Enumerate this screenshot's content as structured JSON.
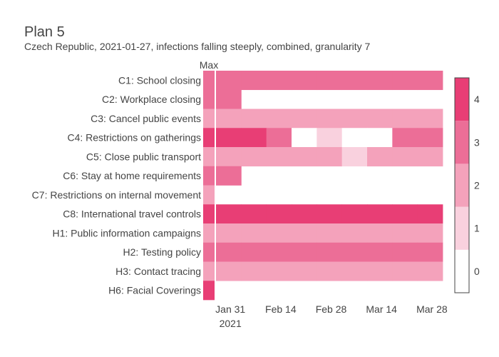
{
  "chart_data": {
    "type": "heatmap",
    "title": "Plan 5",
    "subtitle": "Czech Republic, 2021-01-27, infections falling steeply, combined, granularity 7",
    "max_column_label": "Max",
    "rows": [
      "C1: School closing",
      "C2: Workplace closing",
      "C3: Cancel public events",
      "C4: Restrictions on gatherings",
      "C5: Close public transport",
      "C6: Stay at home requirements",
      "C7: Restrictions on internal movement",
      "C8: International travel controls",
      "H1: Public information campaigns",
      "H2: Testing policy",
      "H3: Contact tracing",
      "H6: Facial Coverings"
    ],
    "max_values": [
      3,
      3,
      2,
      4,
      2,
      3,
      2,
      4,
      2,
      3,
      2,
      4
    ],
    "periods_start": "2021-01-27",
    "period_days": 7,
    "values": [
      [
        3,
        3,
        3,
        3,
        3,
        3,
        3,
        3,
        3
      ],
      [
        3,
        null,
        null,
        null,
        null,
        null,
        null,
        null,
        null
      ],
      [
        2,
        2,
        2,
        2,
        2,
        2,
        2,
        2,
        2
      ],
      [
        4,
        4,
        3,
        0,
        1,
        0,
        0,
        3,
        3
      ],
      [
        2,
        2,
        2,
        2,
        2,
        1,
        2,
        2,
        2
      ],
      [
        3,
        null,
        null,
        null,
        null,
        null,
        null,
        null,
        null
      ],
      [
        null,
        null,
        null,
        null,
        null,
        null,
        null,
        null,
        null
      ],
      [
        4,
        4,
        4,
        4,
        4,
        4,
        4,
        4,
        4
      ],
      [
        2,
        2,
        2,
        2,
        2,
        2,
        2,
        2,
        2
      ],
      [
        3,
        3,
        3,
        3,
        3,
        3,
        3,
        3,
        3
      ],
      [
        2,
        2,
        2,
        2,
        2,
        2,
        2,
        2,
        2
      ],
      [
        null,
        null,
        null,
        null,
        null,
        null,
        null,
        null,
        null
      ]
    ],
    "x_ticks": [
      {
        "value": "2021-01-31",
        "label": "Jan 31",
        "sublabel": "2021"
      },
      {
        "value": "2021-02-14",
        "label": "Feb 14",
        "sublabel": ""
      },
      {
        "value": "2021-02-28",
        "label": "Feb 28",
        "sublabel": ""
      },
      {
        "value": "2021-03-14",
        "label": "Mar 14",
        "sublabel": ""
      },
      {
        "value": "2021-03-28",
        "label": "Mar 28",
        "sublabel": ""
      }
    ],
    "x_range": [
      "2021-01-27",
      "2021-03-31"
    ],
    "colorscale": {
      "min": 0,
      "max": 4,
      "colors": [
        "#ffffff",
        "#f9d1de",
        "#f4a2bb",
        "#ec6e97",
        "#e83e75"
      ],
      "ticks": [
        0,
        1,
        2,
        3,
        4
      ]
    },
    "separator_color": "#ffffff"
  }
}
